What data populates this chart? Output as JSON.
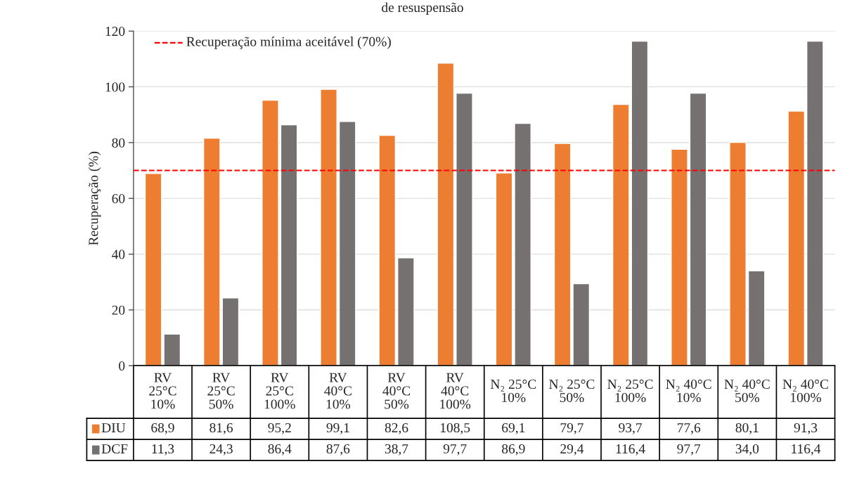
{
  "chart_data": {
    "type": "bar",
    "title": "de resuspensão",
    "ylabel": "Recuperação (%)",
    "categories": [
      "RV\n25°C\n10%",
      "RV\n25°C\n50%",
      "RV\n25°C\n100%",
      "RV\n40°C\n10%",
      "RV\n40°C\n50%",
      "RV\n40°C\n100%",
      "N₂ 25°C\n10%",
      "N₂ 25°C\n50%",
      "N₂ 25°C\n100%",
      "N₂ 40°C\n10%",
      "N₂ 40°C\n50%",
      "N₂ 40°C\n100%"
    ],
    "series": [
      {
        "name": "DIU",
        "color": "#ed7d31",
        "values": [
          68.9,
          81.6,
          95.2,
          99.1,
          82.6,
          108.5,
          69.1,
          79.7,
          93.7,
          77.6,
          80.1,
          91.3
        ],
        "value_labels": [
          "68,9",
          "81,6",
          "95,2",
          "99,1",
          "82,6",
          "108,5",
          "69,1",
          "79,7",
          "93,7",
          "77,6",
          "80,1",
          "91,3"
        ]
      },
      {
        "name": "DCF",
        "color": "#767171",
        "values": [
          11.3,
          24.3,
          86.4,
          87.6,
          38.7,
          97.7,
          86.9,
          29.4,
          116.4,
          97.7,
          34.0,
          116.4
        ],
        "value_labels": [
          "11,3",
          "24,3",
          "86,4",
          "87,6",
          "38,7",
          "97,7",
          "86,9",
          "29,4",
          "116,4",
          "97,7",
          "34,0",
          "116,4"
        ]
      }
    ],
    "ylim": [
      0,
      120
    ],
    "yticks": [
      0,
      20,
      40,
      60,
      80,
      100,
      120
    ],
    "grid": "y",
    "legend": "bottom left",
    "ref_lines": [
      {
        "axis": "y",
        "value": 70,
        "label": "Recuperação mínima aceitável (70%)",
        "color": "#ff0000",
        "line_style": "dashed"
      }
    ]
  }
}
